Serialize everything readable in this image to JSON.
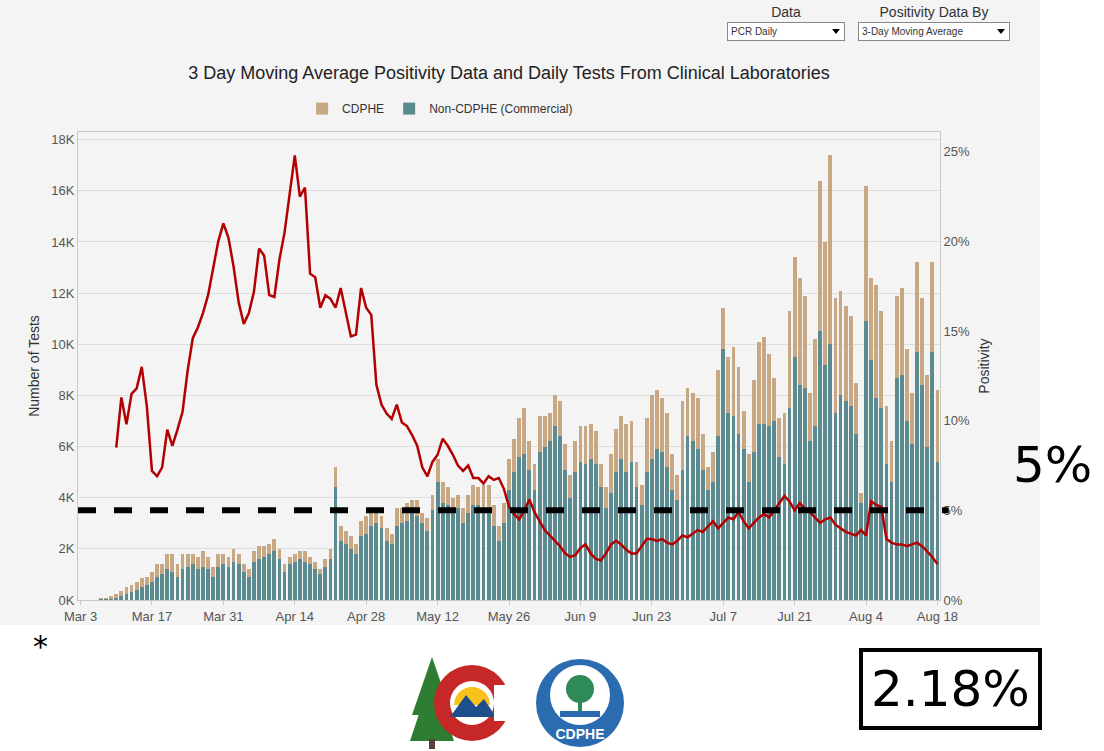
{
  "chart_data": {
    "type": "bar",
    "title": "3 Day Moving Average Positivity Data and Daily Tests From Clinical Laboratories",
    "controls": [
      {
        "label": "Data",
        "value": "PCR Daily"
      },
      {
        "label": "Positivity Data By",
        "value": "3-Day Moving Average"
      }
    ],
    "ylabel": "Number of Tests",
    "y2label": "Positivity",
    "stacked": true,
    "grid": true,
    "legend": "top",
    "categories": [
      "Mar 3",
      null,
      null,
      null,
      null,
      null,
      null,
      null,
      null,
      null,
      null,
      null,
      null,
      null,
      "Mar 17",
      null,
      null,
      null,
      null,
      null,
      null,
      null,
      null,
      null,
      null,
      null,
      null,
      null,
      "Mar 31",
      null,
      null,
      null,
      null,
      null,
      null,
      null,
      null,
      null,
      null,
      null,
      null,
      null,
      "Apr 14",
      null,
      null,
      null,
      null,
      null,
      null,
      null,
      null,
      null,
      null,
      null,
      null,
      null,
      "Apr 28",
      null,
      null,
      null,
      null,
      null,
      null,
      null,
      null,
      null,
      null,
      null,
      null,
      null,
      "May 12",
      null,
      null,
      null,
      null,
      null,
      null,
      null,
      null,
      null,
      null,
      null,
      null,
      null,
      "May 26",
      null,
      null,
      null,
      null,
      null,
      null,
      null,
      null,
      null,
      null,
      null,
      null,
      null,
      "Jun 9",
      null,
      null,
      null,
      null,
      null,
      null,
      null,
      null,
      null,
      null,
      null,
      null,
      null,
      "Jun 23",
      null,
      null,
      null,
      null,
      null,
      null,
      null,
      null,
      null,
      null,
      null,
      null,
      null,
      "Jul 7",
      null,
      null,
      null,
      null,
      null,
      null,
      null,
      null,
      null,
      null,
      null,
      null,
      null,
      "Jul 21",
      null,
      null,
      null,
      null,
      null,
      null,
      null,
      null,
      null,
      null,
      null,
      null,
      null,
      "Aug 4",
      null,
      null,
      null,
      null,
      null,
      null,
      null,
      null,
      null,
      null,
      null,
      null,
      null,
      "Aug 18"
    ],
    "series": [
      {
        "name": "Non-CDPHE (Commercial)",
        "type": "bar",
        "color": "#5b8b90",
        "axis": "y",
        "values": [
          null,
          null,
          null,
          null,
          20,
          30,
          50,
          80,
          150,
          250,
          300,
          400,
          500,
          600,
          700,
          900,
          1000,
          1200,
          1100,
          900,
          1200,
          1300,
          1400,
          1200,
          1300,
          1200,
          900,
          1300,
          1400,
          1300,
          1500,
          1400,
          1100,
          900,
          1500,
          1600,
          1700,
          1800,
          1900,
          1600,
          1100,
          1400,
          1500,
          1600,
          1500,
          1400,
          1200,
          1000,
          1300,
          1600,
          4400,
          2300,
          2200,
          2000,
          1800,
          2500,
          2600,
          2900,
          3000,
          2800,
          2300,
          2200,
          2900,
          3000,
          3100,
          3400,
          3300,
          3000,
          2700,
          3500,
          4600,
          3800,
          3700,
          3400,
          3600,
          3000,
          3400,
          3700,
          3700,
          3600,
          3500,
          2900,
          2300,
          3000,
          4300,
          5000,
          5600,
          5700,
          5100,
          4300,
          5800,
          6000,
          6200,
          6800,
          6400,
          5100,
          4000,
          5000,
          5400,
          5300,
          5500,
          5300,
          4400,
          3600,
          4200,
          5000,
          5500,
          5000,
          5400,
          4400,
          3700,
          5000,
          5500,
          5900,
          5800,
          5200,
          4300,
          3900,
          5100,
          6400,
          6200,
          5900,
          5100,
          4300,
          4600,
          6400,
          9800,
          7300,
          7200,
          6500,
          5900,
          4600,
          5800,
          6900,
          6900,
          6800,
          7000,
          5600,
          5300,
          7500,
          9500,
          8400,
          8300,
          6200,
          6800,
          10500,
          9200,
          10000,
          7300,
          8000,
          7800,
          7600,
          6500,
          3800,
          10900,
          9400,
          7900,
          7500,
          5300,
          4600,
          8700,
          8800,
          7000,
          6100,
          9700,
          8400,
          6000,
          9700,
          5400
        ]
      },
      {
        "name": "CDPHE",
        "type": "bar",
        "color": "#c8a882",
        "axis": "y",
        "values": [
          null,
          null,
          null,
          null,
          40,
          60,
          100,
          150,
          200,
          250,
          300,
          300,
          350,
          300,
          400,
          500,
          400,
          600,
          700,
          500,
          600,
          500,
          400,
          500,
          600,
          500,
          400,
          500,
          400,
          400,
          500,
          400,
          300,
          300,
          400,
          500,
          400,
          400,
          500,
          400,
          300,
          300,
          300,
          300,
          400,
          300,
          300,
          200,
          300,
          400,
          800,
          600,
          500,
          500,
          400,
          600,
          700,
          500,
          600,
          500,
          500,
          400,
          700,
          600,
          700,
          500,
          600,
          400,
          500,
          600,
          900,
          800,
          700,
          600,
          500,
          600,
          700,
          800,
          700,
          900,
          1000,
          800,
          600,
          800,
          1200,
          1300,
          1500,
          1800,
          1100,
          1000,
          1400,
          1200,
          1100,
          1200,
          1400,
          1000,
          900,
          1200,
          1400,
          1500,
          1400,
          1300,
          900,
          800,
          1500,
          1700,
          1700,
          1900,
          1600,
          1000,
          800,
          2100,
          2500,
          2300,
          2100,
          2100,
          1400,
          1000,
          2700,
          1900,
          1900,
          2000,
          1400,
          900,
          1200,
          2600,
          1600,
          2200,
          2700,
          2600,
          1500,
          1100,
          2800,
          3200,
          3400,
          2800,
          1700,
          1500,
          2000,
          3800,
          3900,
          4200,
          3600,
          1900,
          3400,
          5900,
          4800,
          7400,
          4500,
          4100,
          3700,
          3500,
          2000,
          400,
          5300,
          3200,
          4400,
          3800,
          2300,
          1600,
          3200,
          3400,
          2800,
          2000,
          3500,
          3400,
          2800,
          3500,
          2800
        ]
      },
      {
        "type": "line",
        "color": "#b30000",
        "axis": "y2",
        "line_style": "solid",
        "values": [
          null,
          null,
          null,
          null,
          null,
          null,
          null,
          8.5,
          11.3,
          9.8,
          11.5,
          11.8,
          13.0,
          10.8,
          7.2,
          6.9,
          7.4,
          9.5,
          8.6,
          9.5,
          10.5,
          12.8,
          14.6,
          15.2,
          16.0,
          17.0,
          18.5,
          20.0,
          21.0,
          20.2,
          18.6,
          16.6,
          15.4,
          16.0,
          17.2,
          19.6,
          19.2,
          17.0,
          16.9,
          19.0,
          20.5,
          22.6,
          24.8,
          22.5,
          23.0,
          18.2,
          18.0,
          16.3,
          17.0,
          16.8,
          16.3,
          17.4,
          16.0,
          14.7,
          14.8,
          17.4,
          16.3,
          15.9,
          12.0,
          10.9,
          10.4,
          10.1,
          10.9,
          9.9,
          9.7,
          9.2,
          8.6,
          7.4,
          6.9,
          7.7,
          8.1,
          9.0,
          8.6,
          8.1,
          7.5,
          7.2,
          7.5,
          6.8,
          6.8,
          6.5,
          6.9,
          6.7,
          6.8,
          6.2,
          5.2,
          4.8,
          4.5,
          5.0,
          5.6,
          4.9,
          4.4,
          3.9,
          3.6,
          3.3,
          3.0,
          2.6,
          2.4,
          2.5,
          2.9,
          3.1,
          2.6,
          2.3,
          2.2,
          2.6,
          3.1,
          3.3,
          3.1,
          2.8,
          2.6,
          2.6,
          3.0,
          3.4,
          3.4,
          3.3,
          3.4,
          3.2,
          3.1,
          3.3,
          3.6,
          3.5,
          3.7,
          3.9,
          3.8,
          4.1,
          4.4,
          4.0,
          4.3,
          4.6,
          4.5,
          4.9,
          4.4,
          4.0,
          4.3,
          4.6,
          4.8,
          4.6,
          5.0,
          5.4,
          5.8,
          5.5,
          5.0,
          5.4,
          5.1,
          4.9,
          4.6,
          4.3,
          4.5,
          4.6,
          4.2,
          4.0,
          3.8,
          3.7,
          3.6,
          3.9,
          3.6,
          5.5,
          5.3,
          5.2,
          3.4,
          3.2,
          3.1,
          3.1,
          3.0,
          3.1,
          3.2,
          3.0,
          2.7,
          2.4,
          2.0
        ]
      }
    ],
    "ylim": [
      0,
      18300
    ],
    "yticks": [
      {
        "value": 0,
        "label": "0K"
      },
      {
        "value": 2000,
        "label": "2K"
      },
      {
        "value": 4000,
        "label": "4K"
      },
      {
        "value": 6000,
        "label": "6K"
      },
      {
        "value": 8000,
        "label": "8K"
      },
      {
        "value": 10000,
        "label": "10K"
      },
      {
        "value": 12000,
        "label": "12K"
      },
      {
        "value": 14000,
        "label": "14K"
      },
      {
        "value": 16000,
        "label": "16K"
      },
      {
        "value": 18000,
        "label": "18K"
      }
    ],
    "y2lim": [
      0,
      26.1
    ],
    "y2ticks": [
      {
        "value": 0,
        "label": "0%"
      },
      {
        "value": 5,
        "label": "5%"
      },
      {
        "value": 10,
        "label": "10%"
      },
      {
        "value": 15,
        "label": "15%"
      },
      {
        "value": 20,
        "label": "20%"
      },
      {
        "value": 25,
        "label": "25%"
      }
    ],
    "reference_line": {
      "value": 5,
      "label": "5%",
      "axis": "y2",
      "line_style": "dashed",
      "color": "#000000"
    },
    "annotations": [
      {
        "text": "2.18%"
      },
      {
        "text": "*"
      }
    ],
    "logo_text": "CDPHE"
  }
}
